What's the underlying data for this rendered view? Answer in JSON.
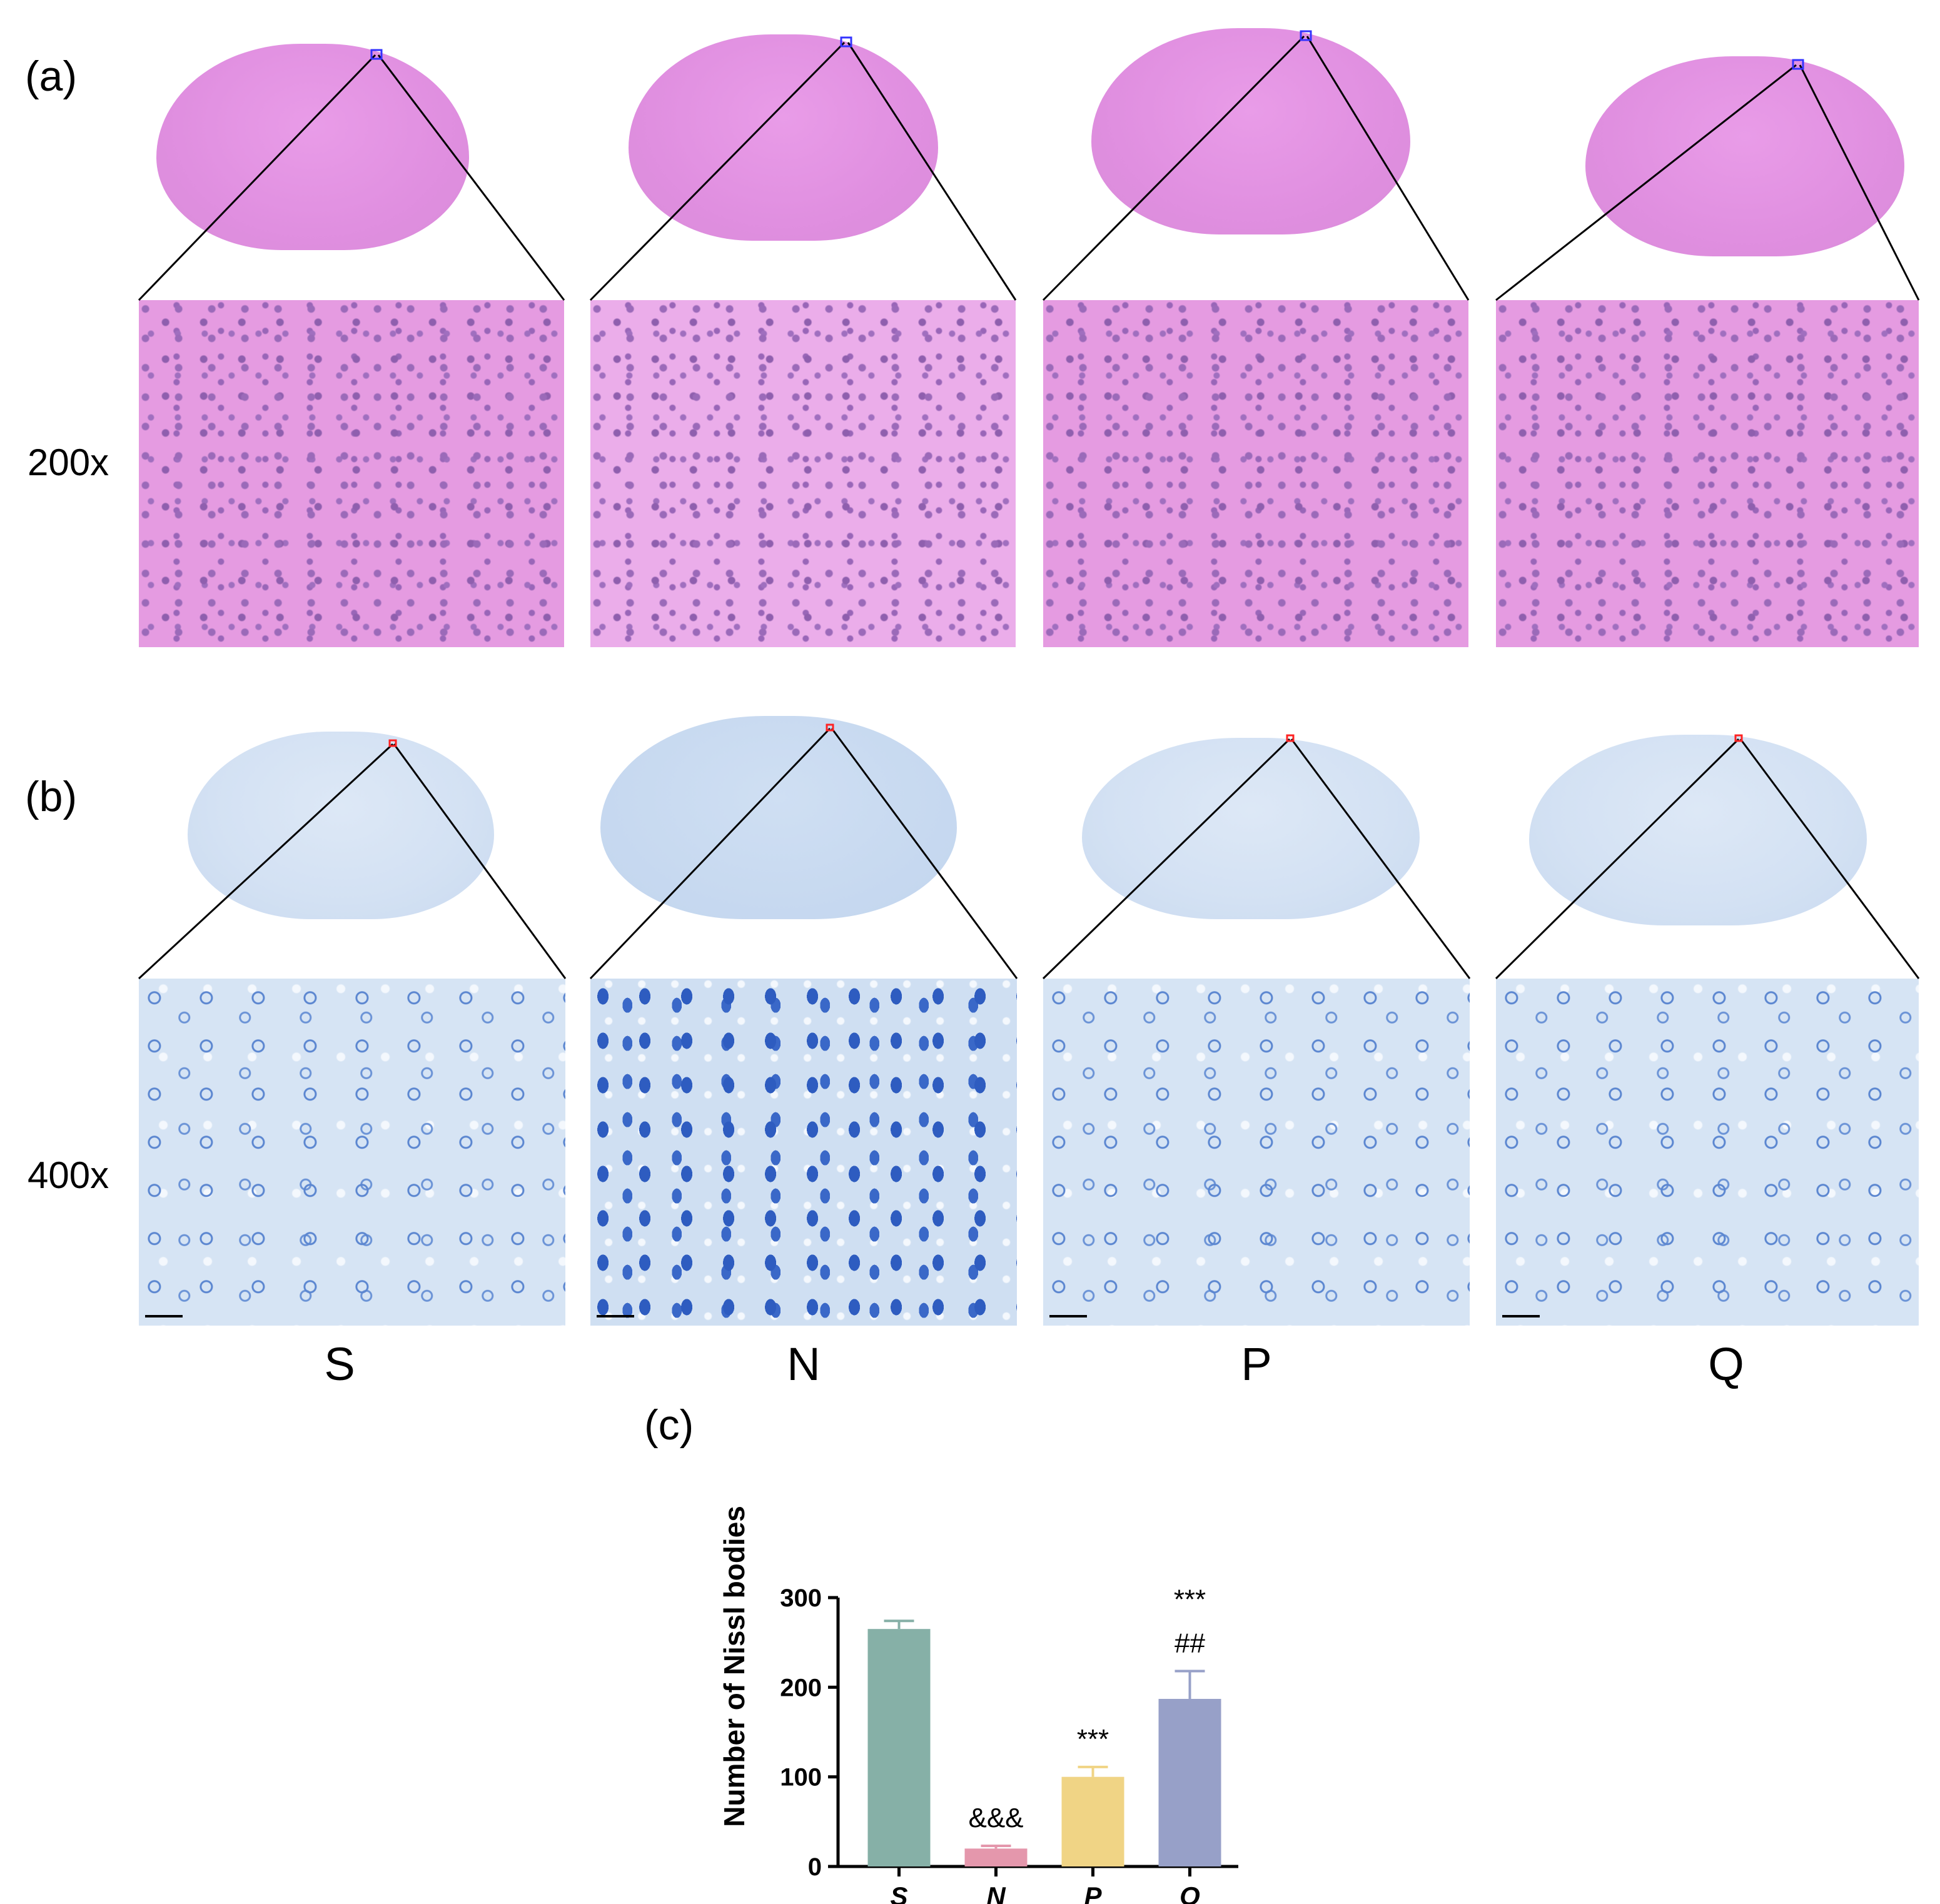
{
  "panels": {
    "a_label": "(a)",
    "b_label": "(b)",
    "c_label": "(c)",
    "mag_200": "200x",
    "mag_400": "400x",
    "groups": [
      "S",
      "N",
      "P",
      "Q"
    ]
  },
  "colors": {
    "he_stain": "#e59be1",
    "nissl_stain": "#d6e4f4",
    "roi_a": "#3333ff",
    "roi_b": "#ff2222"
  },
  "chart_data": {
    "type": "bar",
    "title": "",
    "xlabel": "",
    "ylabel": "Number of Nissl bodies",
    "categories": [
      "S",
      "N",
      "P",
      "Q"
    ],
    "values": [
      265,
      20,
      100,
      187
    ],
    "errors": [
      9,
      3,
      11,
      31
    ],
    "ylim": [
      0,
      300
    ],
    "yticks": [
      0,
      100,
      200,
      300
    ],
    "colors": [
      "#86b0a7",
      "#e497ac",
      "#f0d485",
      "#97a0c8"
    ],
    "annotations": [
      {
        "category": "N",
        "lines": [
          "&&&"
        ]
      },
      {
        "category": "P",
        "lines": [
          "***"
        ]
      },
      {
        "category": "Q",
        "lines": [
          "***",
          "##"
        ]
      }
    ],
    "grid": false
  }
}
